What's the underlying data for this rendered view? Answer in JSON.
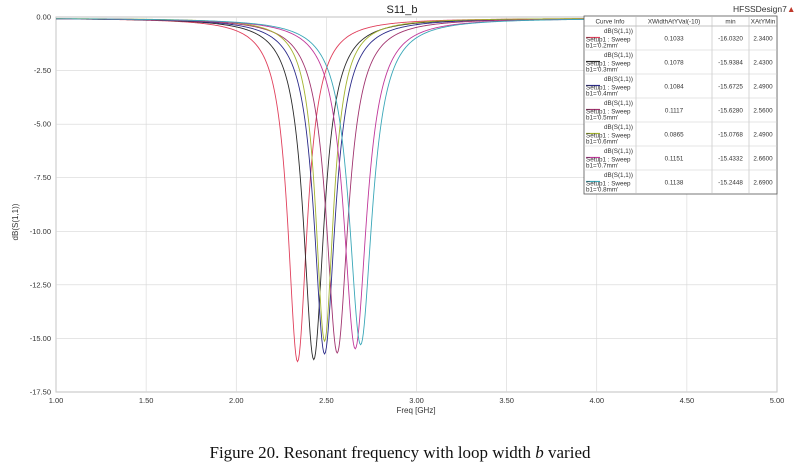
{
  "chart_data": {
    "type": "line",
    "title": "S11_b",
    "brand": "HFSSDesign7",
    "brand_marker": "▲",
    "xlabel": "Freq [GHz]",
    "ylabel": "dB(S(1,1))",
    "xlim": [
      1.0,
      5.0
    ],
    "ylim": [
      -17.5,
      0.0
    ],
    "xticks": [
      "1.00",
      "1.50",
      "2.00",
      "2.50",
      "3.00",
      "3.50",
      "4.00",
      "4.50",
      "5.00"
    ],
    "xtick_values": [
      1.0,
      1.5,
      2.0,
      2.5,
      3.0,
      3.5,
      4.0,
      4.5,
      5.0
    ],
    "yticks": [
      "0.00",
      "-2.50",
      "-5.00",
      "-7.50",
      "-10.00",
      "-12.50",
      "-15.00",
      "-17.50"
    ],
    "ytick_values": [
      0.0,
      -2.5,
      -5.0,
      -7.5,
      -10.0,
      -12.5,
      -15.0,
      -17.5
    ],
    "grid": true,
    "legend_position": "top-right",
    "legend_headers": [
      "Curve Info",
      "XWidthAtYVal(-10)",
      "min",
      "XAtYMin"
    ],
    "series": [
      {
        "name": "dB(S(1,1))",
        "setup": "Setup1 : Sweep",
        "param": "b1='0.2mm'",
        "xwidth": "0.1033",
        "min": "-16.0320",
        "xatymin": "2.3400",
        "fmin": 2.34,
        "ymin": -16.032,
        "bw": 0.1033,
        "color": "#e0405c"
      },
      {
        "name": "dB(S(1,1))",
        "setup": "Setup1 : Sweep",
        "param": "b1='0.3mm'",
        "xwidth": "0.1078",
        "min": "-15.9384",
        "xatymin": "2.4300",
        "fmin": 2.43,
        "ymin": -15.9384,
        "bw": 0.1078,
        "color": "#2a2a2a"
      },
      {
        "name": "dB(S(1,1))",
        "setup": "Setup1 : Sweep",
        "param": "b1='0.4mm'",
        "xwidth": "0.1084",
        "min": "-15.6725",
        "xatymin": "2.4900",
        "fmin": 2.49,
        "ymin": -15.6725,
        "bw": 0.1084,
        "color": "#2b2b8a"
      },
      {
        "name": "dB(S(1,1))",
        "setup": "Setup1 : Sweep",
        "param": "b1='0.5mm'",
        "xwidth": "0.1117",
        "min": "-15.6280",
        "xatymin": "2.5600",
        "fmin": 2.56,
        "ymin": -15.628,
        "bw": 0.1117,
        "color": "#a0336e"
      },
      {
        "name": "dB(S(1,1))",
        "setup": "Setup1 : Sweep",
        "param": "b1='0.6mm'",
        "xwidth": "0.0865",
        "min": "-15.0768",
        "xatymin": "2.4900",
        "fmin": 2.49,
        "ymin": -15.0768,
        "bw": 0.0865,
        "color": "#a3b32e"
      },
      {
        "name": "dB(S(1,1))",
        "setup": "Setup1 : Sweep",
        "param": "b1='0.7mm'",
        "xwidth": "0.1151",
        "min": "-15.4332",
        "xatymin": "2.6600",
        "fmin": 2.66,
        "ymin": -15.4332,
        "bw": 0.1151,
        "color": "#c0389a"
      },
      {
        "name": "dB(S(1,1))",
        "setup": "Setup1 : Sweep",
        "param": "b1='0.8mm'",
        "xwidth": "0.1138",
        "min": "-15.2448",
        "xatymin": "2.6900",
        "fmin": 2.69,
        "ymin": -15.2448,
        "bw": 0.1138,
        "color": "#3aa7b8"
      }
    ]
  },
  "caption": {
    "prefix": "Figure 20. Resonant frequency with loop width ",
    "variable": "b",
    "suffix": " varied"
  }
}
